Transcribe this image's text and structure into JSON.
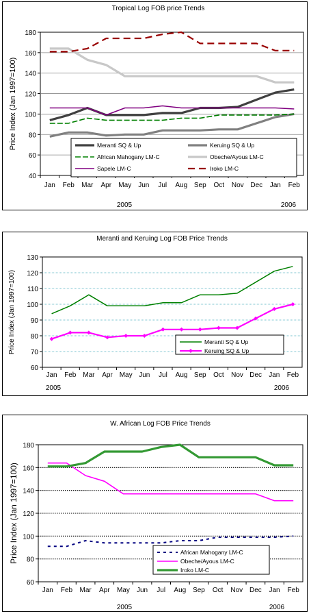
{
  "chart_data": [
    {
      "type": "line",
      "title": "Tropical Log FOB price Trends",
      "ylabel": "Price Index (Jan 1997=100)",
      "ylim": [
        40,
        180
      ],
      "yticks": [
        40,
        60,
        80,
        100,
        120,
        140,
        160,
        180
      ],
      "categories": [
        "Jan",
        "Feb",
        "Mar",
        "Apr",
        "May",
        "Jun",
        "Jul",
        "Aug",
        "Sep",
        "Oct",
        "Nov",
        "Dec",
        "Jan",
        "Feb"
      ],
      "year_labels": [
        "2005",
        "2006"
      ],
      "grid": true,
      "legend": "bottom-center",
      "series": [
        {
          "name": "Meranti SQ & Up",
          "color": "#404040",
          "values": [
            94,
            99,
            106,
            99,
            99,
            99,
            101,
            101,
            106,
            106,
            107,
            114,
            121,
            124
          ]
        },
        {
          "name": "Keruing SQ & Up",
          "color": "#808080",
          "values": [
            78,
            82,
            82,
            79,
            80,
            80,
            84,
            84,
            84,
            85,
            85,
            91,
            97,
            100
          ]
        },
        {
          "name": "African Mahogany LM-C",
          "color": "#008000",
          "values": [
            91,
            91,
            96,
            94,
            94,
            94,
            94,
            96,
            96,
            99,
            99,
            99,
            99,
            100
          ]
        },
        {
          "name": "Obeche/Ayous LM-C",
          "color": "#c8c8c8",
          "values": [
            164,
            164,
            153,
            148,
            137,
            137,
            137,
            137,
            137,
            137,
            137,
            137,
            131,
            131
          ]
        },
        {
          "name": "Sapele LM-C",
          "color": "#800080",
          "values": [
            106,
            106,
            106,
            99,
            106,
            106,
            108,
            106,
            106,
            106,
            106,
            106,
            106,
            105
          ]
        },
        {
          "name": "Iroko LM-C",
          "color": "#990000",
          "values": [
            161,
            161,
            164,
            174,
            174,
            174,
            178,
            180,
            169,
            169,
            169,
            169,
            162,
            162
          ]
        }
      ]
    },
    {
      "type": "line",
      "title": "Meranti and Keruing Log FOB Price Trends",
      "ylabel": "Price Index (Jan 1997=100)",
      "ylim": [
        60,
        130
      ],
      "yticks": [
        60,
        70,
        80,
        90,
        100,
        110,
        120,
        130
      ],
      "categories": [
        "Jan",
        "Feb",
        "Mar",
        "Apr",
        "May",
        "Jun",
        "Jul",
        "Aug",
        "Sep",
        "Oct",
        "Nov",
        "Dec",
        "Jan",
        "Feb"
      ],
      "year_labels": [
        "2005",
        "2006"
      ],
      "grid": true,
      "legend": "bottom-right",
      "series": [
        {
          "name": "Meranti SQ & Up",
          "color": "#008000",
          "values": [
            94,
            99,
            106,
            99,
            99,
            99,
            101,
            101,
            106,
            106,
            107,
            114,
            121,
            124
          ]
        },
        {
          "name": "Keruing SQ & Up",
          "color": "#ff00ff",
          "values": [
            78,
            82,
            82,
            79,
            80,
            80,
            84,
            84,
            84,
            85,
            85,
            91,
            97,
            100
          ]
        }
      ]
    },
    {
      "type": "line",
      "title": "W. African Log FOB Price Trends",
      "ylabel": "Price Index (Jan 1997=100)",
      "ylim": [
        60,
        180
      ],
      "yticks": [
        60,
        80,
        100,
        120,
        140,
        160,
        180
      ],
      "categories": [
        "Jan",
        "Feb",
        "Mar",
        "Apr",
        "May",
        "Jun",
        "Jul",
        "Aug",
        "Sep",
        "Oct",
        "Nov",
        "Dec",
        "Jan",
        "Feb"
      ],
      "year_labels": [
        "2005",
        "2006"
      ],
      "grid": true,
      "legend": "bottom-right",
      "series": [
        {
          "name": "African Mahogany LM-C",
          "color": "#000080",
          "values": [
            91,
            91,
            96,
            94,
            94,
            94,
            94,
            96,
            96,
            99,
            99,
            99,
            99,
            100
          ]
        },
        {
          "name": "Obeche/Ayous LM-C",
          "color": "#ff00ff",
          "values": [
            164,
            164,
            153,
            148,
            137,
            137,
            137,
            137,
            137,
            137,
            137,
            137,
            131,
            131
          ]
        },
        {
          "name": "Iroko LM-C",
          "color": "#339933",
          "values": [
            161,
            161,
            164,
            174,
            174,
            174,
            178,
            180,
            169,
            169,
            169,
            169,
            162,
            162
          ]
        }
      ]
    }
  ]
}
